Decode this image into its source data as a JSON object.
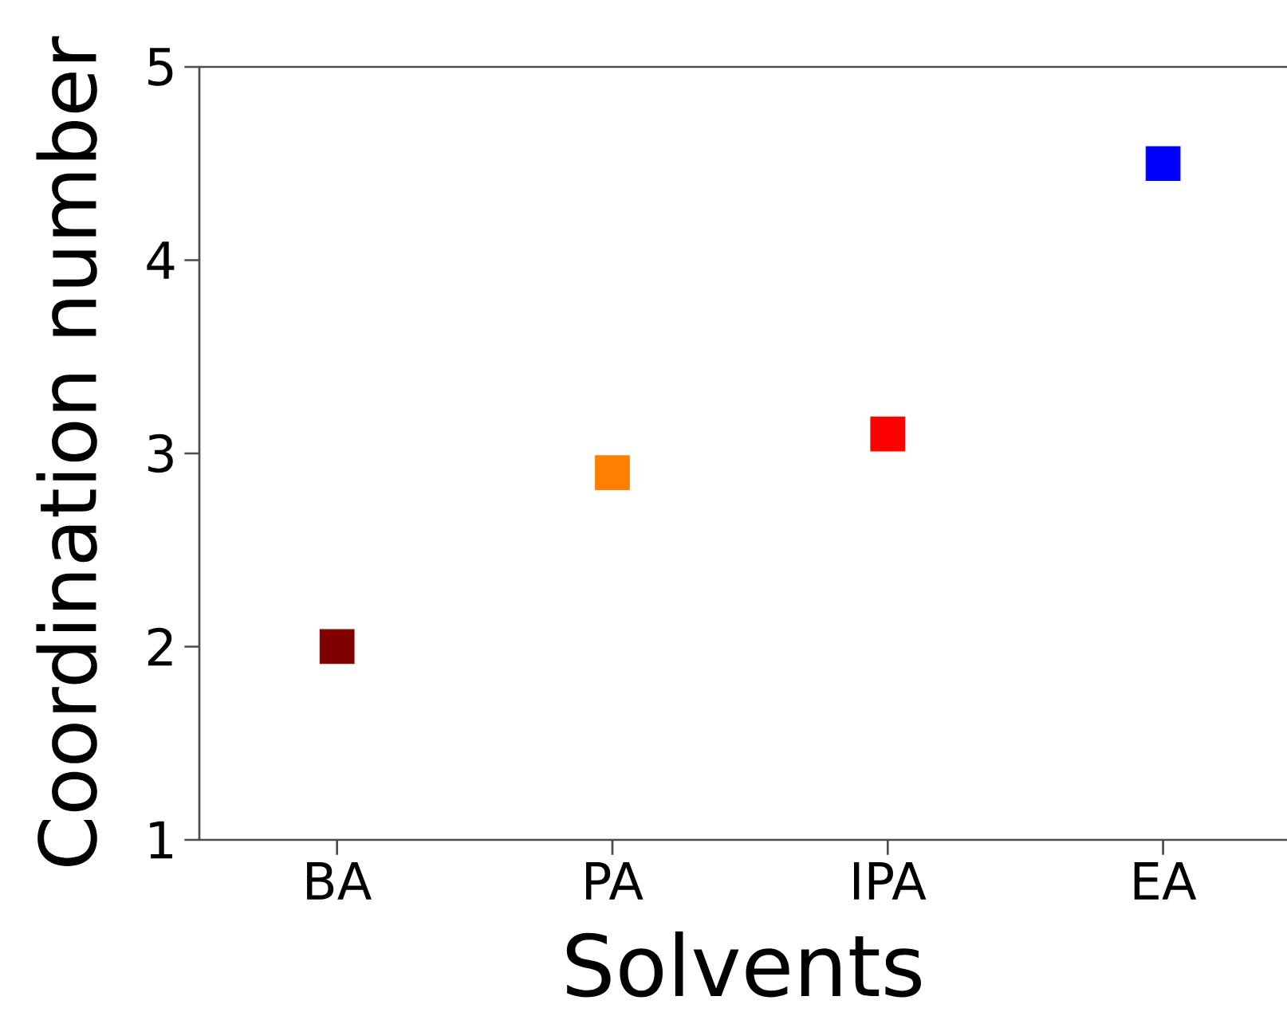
{
  "chart_data": {
    "type": "scatter",
    "xlabel": "Solvents",
    "ylabel": "Coordination number",
    "categories": [
      "BA",
      "PA",
      "IPA",
      "EA"
    ],
    "series": [
      {
        "values": [
          2.0,
          2.9,
          3.1,
          4.5
        ],
        "colors": [
          "#800000",
          "#ff8000",
          "#ff0000",
          "#0000ff"
        ]
      }
    ],
    "ylim": [
      1,
      5
    ],
    "yticks": [
      1,
      2,
      3,
      4,
      5
    ],
    "marker": "square"
  }
}
